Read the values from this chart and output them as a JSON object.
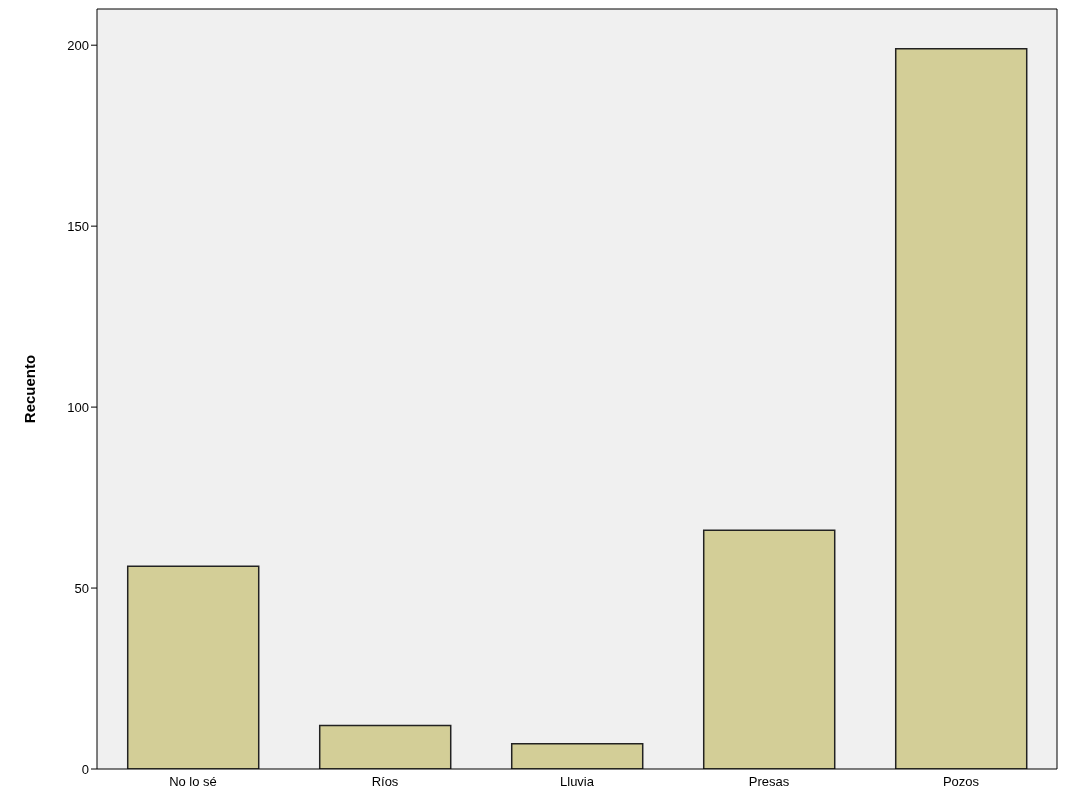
{
  "chart_data": {
    "type": "bar",
    "ylabel": "Recuento",
    "categories": [
      "No lo sé",
      "Ríos",
      "Lluvia",
      "Presas",
      "Pozos"
    ],
    "values": [
      56,
      12,
      7,
      66,
      199
    ],
    "color": "#d3ce97",
    "ylim": [
      0,
      210
    ],
    "yticks": [
      0,
      50,
      100,
      150,
      200
    ],
    "grid": false
  }
}
